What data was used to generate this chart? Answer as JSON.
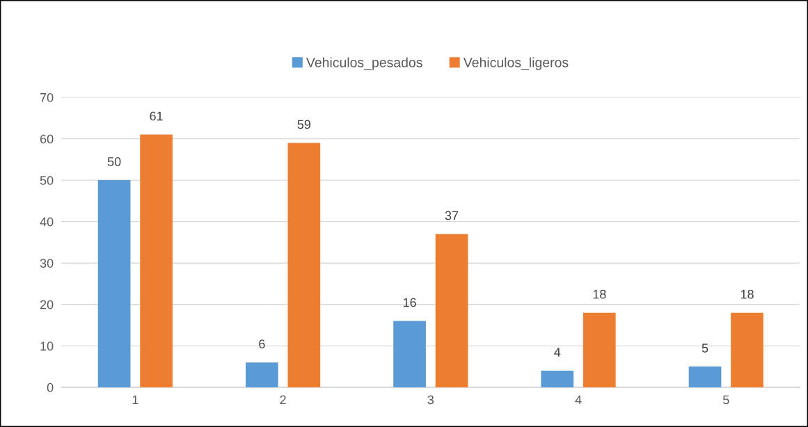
{
  "chart_data": {
    "type": "bar",
    "categories": [
      "1",
      "2",
      "3",
      "4",
      "5"
    ],
    "series": [
      {
        "name": "Vehiculos_pesados",
        "color": "#5b9bd5",
        "values": [
          50,
          6,
          16,
          4,
          5
        ]
      },
      {
        "name": "Vehiculos_ligeros",
        "color": "#ed7d31",
        "values": [
          61,
          59,
          37,
          18,
          18
        ]
      }
    ],
    "ylim": [
      0,
      70
    ],
    "yticks": [
      0,
      10,
      20,
      30,
      40,
      50,
      60,
      70
    ],
    "grid": "y",
    "legend": "top",
    "data_labels": true
  }
}
